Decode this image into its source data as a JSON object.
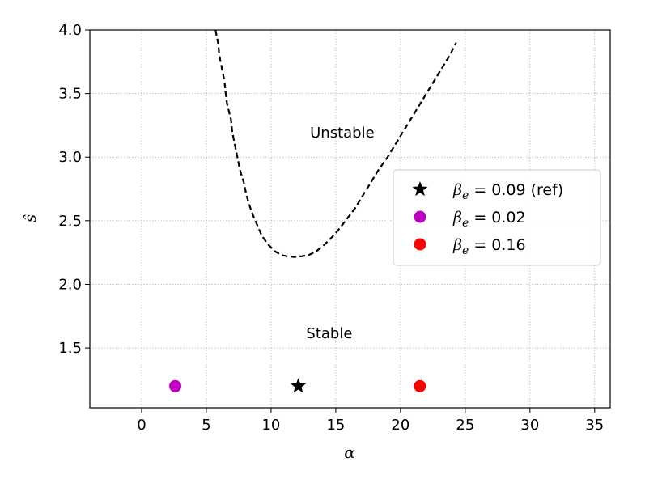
{
  "chart_data": {
    "type": "scatter",
    "xlabel": "α",
    "ylabel": "ŝ",
    "xlim": [
      -4,
      36.2
    ],
    "ylim": [
      1.03,
      4.0
    ],
    "xticks": [
      0,
      5,
      10,
      15,
      20,
      25,
      30,
      35
    ],
    "yticks": [
      1.5,
      2.0,
      2.5,
      3.0,
      3.5,
      4.0
    ],
    "xtick_labels": [
      "0",
      "5",
      "10",
      "15",
      "20",
      "25",
      "30",
      "35"
    ],
    "ytick_labels": [
      "1.5",
      "2.0",
      "2.5",
      "3.0",
      "3.5",
      "4.0"
    ],
    "grid": true,
    "legend_position": "right",
    "boundary": {
      "style": "dashed",
      "color": "#000000",
      "x": [
        5.7,
        5.9,
        6.0,
        6.2,
        6.4,
        6.5,
        6.6,
        6.9,
        7.0,
        7.2,
        7.4,
        7.6,
        7.9,
        8.1,
        8.4,
        8.7,
        9.0,
        9.3,
        9.8,
        10.3,
        10.8,
        11.3,
        11.8,
        12.3,
        12.9,
        13.5,
        14.1,
        14.7,
        15.3,
        15.9,
        16.5,
        17.1,
        17.7,
        18.3,
        19.0,
        19.6,
        20.2,
        20.8,
        21.4,
        22.0,
        22.6,
        23.2,
        23.8,
        24.3
      ],
      "y": [
        4.0,
        3.9,
        3.8,
        3.7,
        3.6,
        3.5,
        3.42,
        3.3,
        3.2,
        3.1,
        3.0,
        2.9,
        2.8,
        2.7,
        2.6,
        2.52,
        2.45,
        2.38,
        2.31,
        2.26,
        2.23,
        2.22,
        2.215,
        2.22,
        2.23,
        2.26,
        2.31,
        2.37,
        2.44,
        2.52,
        2.6,
        2.7,
        2.8,
        2.9,
        3.0,
        3.1,
        3.2,
        3.3,
        3.4,
        3.5,
        3.6,
        3.7,
        3.8,
        3.9
      ]
    },
    "series": [
      {
        "name": "β_e = 0.09 (ref)",
        "marker": "star",
        "color": "#000000",
        "x": [
          12.1
        ],
        "y": [
          1.2
        ]
      },
      {
        "name": "β_e = 0.02",
        "marker": "circle",
        "color": "#bf00bf",
        "x": [
          2.6
        ],
        "y": [
          1.2
        ]
      },
      {
        "name": "β_e = 0.16",
        "marker": "circle",
        "color": "#ff0000",
        "x": [
          21.5
        ],
        "y": [
          1.2
        ]
      }
    ],
    "annotations": [
      {
        "text": "Unstable",
        "x": 15.5,
        "y": 3.2
      },
      {
        "text": "Stable",
        "x": 14.5,
        "y": 1.62
      }
    ]
  },
  "legend": {
    "entries": [
      {
        "symbol": "β",
        "subscript": "e",
        "rest": " = 0.09 (ref)"
      },
      {
        "symbol": "β",
        "subscript": "e",
        "rest": " = 0.02"
      },
      {
        "symbol": "β",
        "subscript": "e",
        "rest": " = 0.16"
      }
    ]
  }
}
